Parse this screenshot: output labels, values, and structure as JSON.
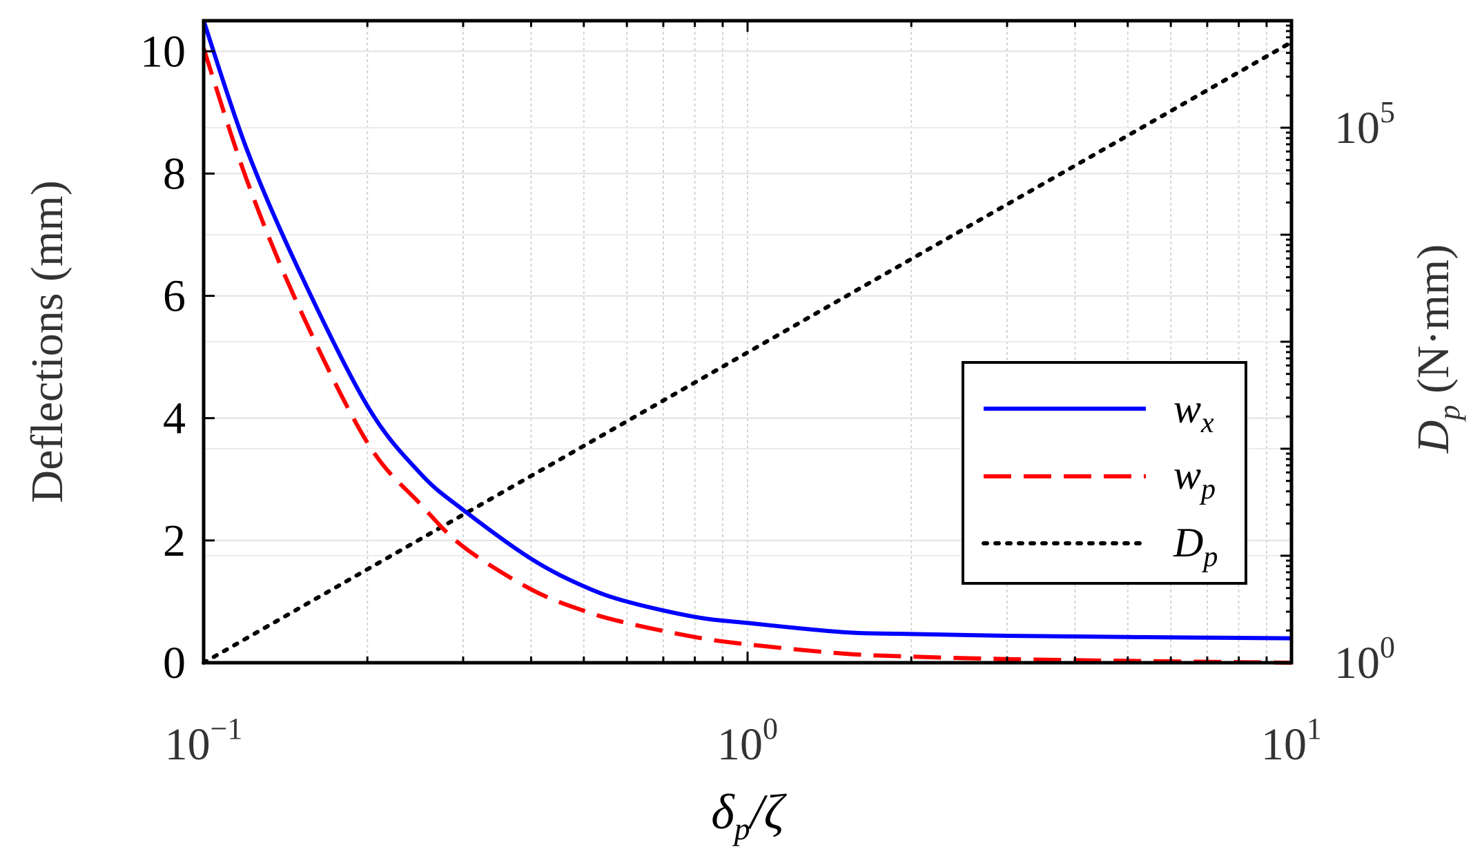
{
  "chart_data": {
    "type": "line",
    "xlabel": {
      "main": "δ",
      "sub": "p",
      "rest": "/ζ"
    },
    "ylabel_left": "Deflections (mm)",
    "ylabel_right": {
      "main": "D",
      "sub": "p",
      "rest": " (N·mm)"
    },
    "x_scale": "log",
    "xlim": [
      0.1,
      10
    ],
    "x_ticks": [
      {
        "base": "10",
        "exp": "−1"
      },
      {
        "base": "10",
        "exp": "0"
      },
      {
        "base": "10",
        "exp": "1"
      }
    ],
    "ylim_left": [
      0,
      10.5
    ],
    "y_ticks_left": [
      "0",
      "2",
      "4",
      "6",
      "8",
      "10"
    ],
    "y_scale_right": "log",
    "ylim_right": [
      1,
      1000000
    ],
    "y_ticks_right": [
      {
        "base": "10",
        "exp": "0"
      },
      {
        "base": "10",
        "exp": "5"
      }
    ],
    "grid": true,
    "legend_position": "center-right",
    "series": [
      {
        "name": {
          "main": "w",
          "sub": "x"
        },
        "axis": "left",
        "style": "solid",
        "color": "#0000ff",
        "x": [
          0.1,
          0.12,
          0.15,
          0.2,
          0.25,
          0.3,
          0.4,
          0.5,
          0.6,
          0.8,
          1,
          1.5,
          2,
          3,
          5,
          10
        ],
        "y": [
          10.5,
          8.4,
          6.4,
          4.2,
          3.1,
          2.5,
          1.7,
          1.25,
          1.0,
          0.75,
          0.65,
          0.5,
          0.47,
          0.44,
          0.42,
          0.4
        ]
      },
      {
        "name": {
          "main": "w",
          "sub": "p"
        },
        "axis": "left",
        "style": "dashed",
        "color": "#ff0000",
        "x": [
          0.1,
          0.12,
          0.15,
          0.2,
          0.25,
          0.3,
          0.4,
          0.5,
          0.6,
          0.8,
          1,
          1.5,
          2,
          3,
          5,
          10
        ],
        "y": [
          10.05,
          7.9,
          5.8,
          3.6,
          2.6,
          1.9,
          1.2,
          0.85,
          0.65,
          0.42,
          0.3,
          0.15,
          0.1,
          0.06,
          0.03,
          0.0
        ]
      },
      {
        "name": {
          "main": "D",
          "sub": "p"
        },
        "axis": "right",
        "style": "dotted",
        "color": "#000000",
        "x": [
          0.1,
          10
        ],
        "y": [
          1.0,
          630000
        ]
      }
    ]
  }
}
